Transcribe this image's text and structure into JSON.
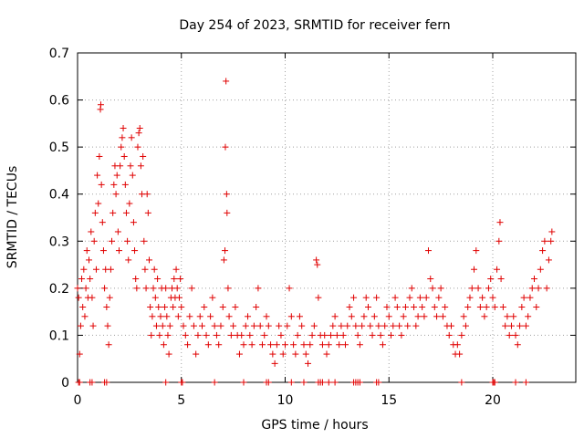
{
  "chart_data": {
    "type": "scatter",
    "title": "Day 254 of 2023, SRMTID for receiver fern",
    "xlabel": "GPS time / hours",
    "ylabel": "SRMTID / TECUs",
    "xlim": [
      0,
      24
    ],
    "ylim": [
      0,
      0.7
    ],
    "xticks": [
      0,
      5,
      10,
      15,
      20
    ],
    "yticks": [
      0,
      0.1,
      0.2,
      0.3,
      0.4,
      0.5,
      0.6,
      0.7
    ],
    "xtick_labels": [
      "0",
      "5",
      "10",
      "15",
      "20"
    ],
    "ytick_labels": [
      "0",
      "0.1",
      "0.2",
      "0.3",
      "0.4",
      "0.5",
      "0.6",
      "0.7"
    ],
    "grid": true,
    "marker": "+",
    "color": "#e00000",
    "series": [
      {
        "name": "SRMTID",
        "points": [
          [
            0.0,
            0.2
          ],
          [
            0.05,
            0.18
          ],
          [
            0.1,
            0.06
          ],
          [
            0.15,
            0.12
          ],
          [
            0.2,
            0.22
          ],
          [
            0.25,
            0.16
          ],
          [
            0.3,
            0.24
          ],
          [
            0.35,
            0.14
          ],
          [
            0.4,
            0.2
          ],
          [
            0.45,
            0.28
          ],
          [
            0.5,
            0.18
          ],
          [
            0.55,
            0.26
          ],
          [
            0.6,
            0.22
          ],
          [
            0.65,
            0.32
          ],
          [
            0.7,
            0.18
          ],
          [
            0.75,
            0.12
          ],
          [
            0.8,
            0.3
          ],
          [
            0.85,
            0.36
          ],
          [
            0.9,
            0.24
          ],
          [
            0.95,
            0.44
          ],
          [
            1.0,
            0.38
          ],
          [
            1.05,
            0.48
          ],
          [
            1.1,
            0.58
          ],
          [
            1.12,
            0.59
          ],
          [
            1.15,
            0.42
          ],
          [
            1.2,
            0.34
          ],
          [
            1.25,
            0.28
          ],
          [
            1.3,
            0.2
          ],
          [
            1.35,
            0.24
          ],
          [
            1.4,
            0.16
          ],
          [
            1.45,
            0.12
          ],
          [
            1.5,
            0.08
          ],
          [
            1.55,
            0.18
          ],
          [
            1.6,
            0.24
          ],
          [
            1.65,
            0.3
          ],
          [
            1.7,
            0.36
          ],
          [
            1.75,
            0.42
          ],
          [
            1.8,
            0.46
          ],
          [
            1.85,
            0.4
          ],
          [
            1.9,
            0.44
          ],
          [
            1.95,
            0.32
          ],
          [
            2.0,
            0.28
          ],
          [
            2.05,
            0.46
          ],
          [
            2.1,
            0.5
          ],
          [
            2.15,
            0.52
          ],
          [
            2.2,
            0.54
          ],
          [
            2.25,
            0.48
          ],
          [
            2.3,
            0.42
          ],
          [
            2.35,
            0.36
          ],
          [
            2.4,
            0.3
          ],
          [
            2.45,
            0.26
          ],
          [
            2.5,
            0.38
          ],
          [
            2.55,
            0.46
          ],
          [
            2.6,
            0.52
          ],
          [
            2.65,
            0.44
          ],
          [
            2.7,
            0.34
          ],
          [
            2.75,
            0.28
          ],
          [
            2.8,
            0.22
          ],
          [
            2.85,
            0.2
          ],
          [
            2.9,
            0.5
          ],
          [
            2.95,
            0.53
          ],
          [
            3.0,
            0.54
          ],
          [
            3.05,
            0.46
          ],
          [
            3.1,
            0.4
          ],
          [
            3.15,
            0.48
          ],
          [
            3.2,
            0.3
          ],
          [
            3.25,
            0.24
          ],
          [
            3.3,
            0.2
          ],
          [
            3.35,
            0.4
          ],
          [
            3.4,
            0.36
          ],
          [
            3.45,
            0.26
          ],
          [
            3.5,
            0.16
          ],
          [
            3.55,
            0.1
          ],
          [
            3.6,
            0.14
          ],
          [
            3.65,
            0.2
          ],
          [
            3.7,
            0.24
          ],
          [
            3.75,
            0.18
          ],
          [
            3.8,
            0.12
          ],
          [
            3.85,
            0.22
          ],
          [
            3.9,
            0.16
          ],
          [
            3.95,
            0.1
          ],
          [
            4.0,
            0.14
          ],
          [
            4.05,
            0.2
          ],
          [
            4.1,
            0.12
          ],
          [
            4.15,
            0.08
          ],
          [
            4.2,
            0.16
          ],
          [
            4.25,
            0.2
          ],
          [
            4.3,
            0.14
          ],
          [
            4.35,
            0.1
          ],
          [
            4.4,
            0.06
          ],
          [
            4.45,
            0.12
          ],
          [
            4.5,
            0.18
          ],
          [
            4.55,
            0.2
          ],
          [
            4.6,
            0.16
          ],
          [
            4.65,
            0.22
          ],
          [
            4.7,
            0.18
          ],
          [
            4.75,
            0.24
          ],
          [
            4.8,
            0.2
          ],
          [
            4.85,
            0.14
          ],
          [
            4.9,
            0.18
          ],
          [
            4.95,
            0.22
          ],
          [
            5.0,
            0.16
          ],
          [
            5.1,
            0.12
          ],
          [
            5.2,
            0.1
          ],
          [
            5.3,
            0.08
          ],
          [
            5.4,
            0.14
          ],
          [
            5.5,
            0.2
          ],
          [
            5.6,
            0.12
          ],
          [
            5.7,
            0.06
          ],
          [
            5.8,
            0.1
          ],
          [
            5.9,
            0.14
          ],
          [
            6.0,
            0.12
          ],
          [
            6.1,
            0.16
          ],
          [
            6.2,
            0.1
          ],
          [
            6.3,
            0.08
          ],
          [
            6.4,
            0.14
          ],
          [
            6.5,
            0.18
          ],
          [
            6.6,
            0.12
          ],
          [
            6.7,
            0.1
          ],
          [
            6.8,
            0.08
          ],
          [
            6.9,
            0.12
          ],
          [
            7.0,
            0.16
          ],
          [
            7.05,
            0.26
          ],
          [
            7.1,
            0.28
          ],
          [
            7.12,
            0.5
          ],
          [
            7.15,
            0.64
          ],
          [
            7.18,
            0.4
          ],
          [
            7.2,
            0.36
          ],
          [
            7.25,
            0.2
          ],
          [
            7.3,
            0.14
          ],
          [
            7.4,
            0.1
          ],
          [
            7.5,
            0.12
          ],
          [
            7.6,
            0.16
          ],
          [
            7.7,
            0.1
          ],
          [
            7.8,
            0.06
          ],
          [
            7.9,
            0.1
          ],
          [
            8.0,
            0.08
          ],
          [
            8.1,
            0.12
          ],
          [
            8.2,
            0.14
          ],
          [
            8.3,
            0.1
          ],
          [
            8.4,
            0.08
          ],
          [
            8.5,
            0.12
          ],
          [
            8.6,
            0.16
          ],
          [
            8.7,
            0.2
          ],
          [
            8.8,
            0.12
          ],
          [
            8.9,
            0.08
          ],
          [
            9.0,
            0.1
          ],
          [
            9.1,
            0.14
          ],
          [
            9.2,
            0.12
          ],
          [
            9.3,
            0.08
          ],
          [
            9.4,
            0.06
          ],
          [
            9.5,
            0.04
          ],
          [
            9.6,
            0.08
          ],
          [
            9.7,
            0.12
          ],
          [
            9.8,
            0.1
          ],
          [
            9.9,
            0.06
          ],
          [
            10.0,
            0.08
          ],
          [
            10.1,
            0.12
          ],
          [
            10.2,
            0.2
          ],
          [
            10.3,
            0.14
          ],
          [
            10.4,
            0.08
          ],
          [
            10.5,
            0.06
          ],
          [
            10.6,
            0.1
          ],
          [
            10.7,
            0.14
          ],
          [
            10.8,
            0.12
          ],
          [
            10.9,
            0.08
          ],
          [
            11.0,
            0.06
          ],
          [
            11.1,
            0.04
          ],
          [
            11.2,
            0.08
          ],
          [
            11.3,
            0.1
          ],
          [
            11.4,
            0.12
          ],
          [
            11.5,
            0.26
          ],
          [
            11.55,
            0.25
          ],
          [
            11.6,
            0.18
          ],
          [
            11.7,
            0.1
          ],
          [
            11.8,
            0.08
          ],
          [
            11.9,
            0.1
          ],
          [
            12.0,
            0.06
          ],
          [
            12.1,
            0.08
          ],
          [
            12.2,
            0.1
          ],
          [
            12.3,
            0.12
          ],
          [
            12.4,
            0.14
          ],
          [
            12.5,
            0.1
          ],
          [
            12.6,
            0.08
          ],
          [
            12.7,
            0.12
          ],
          [
            12.8,
            0.1
          ],
          [
            12.9,
            0.08
          ],
          [
            13.0,
            0.12
          ],
          [
            13.1,
            0.16
          ],
          [
            13.2,
            0.14
          ],
          [
            13.3,
            0.18
          ],
          [
            13.4,
            0.12
          ],
          [
            13.5,
            0.1
          ],
          [
            13.6,
            0.08
          ],
          [
            13.7,
            0.12
          ],
          [
            13.8,
            0.14
          ],
          [
            13.9,
            0.18
          ],
          [
            14.0,
            0.16
          ],
          [
            14.1,
            0.12
          ],
          [
            14.2,
            0.1
          ],
          [
            14.3,
            0.14
          ],
          [
            14.4,
            0.18
          ],
          [
            14.5,
            0.12
          ],
          [
            14.6,
            0.1
          ],
          [
            14.7,
            0.08
          ],
          [
            14.8,
            0.12
          ],
          [
            14.9,
            0.16
          ],
          [
            15.0,
            0.14
          ],
          [
            15.1,
            0.1
          ],
          [
            15.2,
            0.12
          ],
          [
            15.3,
            0.18
          ],
          [
            15.4,
            0.16
          ],
          [
            15.5,
            0.12
          ],
          [
            15.6,
            0.1
          ],
          [
            15.7,
            0.14
          ],
          [
            15.8,
            0.16
          ],
          [
            15.9,
            0.12
          ],
          [
            16.0,
            0.18
          ],
          [
            16.1,
            0.2
          ],
          [
            16.2,
            0.16
          ],
          [
            16.3,
            0.12
          ],
          [
            16.4,
            0.14
          ],
          [
            16.5,
            0.18
          ],
          [
            16.6,
            0.16
          ],
          [
            16.7,
            0.14
          ],
          [
            16.8,
            0.18
          ],
          [
            16.9,
            0.28
          ],
          [
            17.0,
            0.22
          ],
          [
            17.1,
            0.2
          ],
          [
            17.2,
            0.16
          ],
          [
            17.3,
            0.14
          ],
          [
            17.4,
            0.18
          ],
          [
            17.5,
            0.2
          ],
          [
            17.6,
            0.14
          ],
          [
            17.7,
            0.16
          ],
          [
            17.8,
            0.12
          ],
          [
            17.9,
            0.1
          ],
          [
            18.0,
            0.12
          ],
          [
            18.1,
            0.08
          ],
          [
            18.2,
            0.06
          ],
          [
            18.3,
            0.08
          ],
          [
            18.4,
            0.06
          ],
          [
            18.5,
            0.1
          ],
          [
            18.6,
            0.14
          ],
          [
            18.7,
            0.12
          ],
          [
            18.8,
            0.16
          ],
          [
            18.9,
            0.18
          ],
          [
            19.0,
            0.2
          ],
          [
            19.1,
            0.24
          ],
          [
            19.2,
            0.28
          ],
          [
            19.3,
            0.2
          ],
          [
            19.4,
            0.16
          ],
          [
            19.5,
            0.18
          ],
          [
            19.6,
            0.14
          ],
          [
            19.7,
            0.16
          ],
          [
            19.8,
            0.2
          ],
          [
            19.9,
            0.22
          ],
          [
            20.0,
            0.18
          ],
          [
            20.1,
            0.16
          ],
          [
            20.2,
            0.24
          ],
          [
            20.3,
            0.3
          ],
          [
            20.35,
            0.34
          ],
          [
            20.4,
            0.22
          ],
          [
            20.5,
            0.16
          ],
          [
            20.6,
            0.12
          ],
          [
            20.7,
            0.14
          ],
          [
            20.8,
            0.1
          ],
          [
            20.9,
            0.12
          ],
          [
            21.0,
            0.14
          ],
          [
            21.1,
            0.1
          ],
          [
            21.2,
            0.08
          ],
          [
            21.3,
            0.12
          ],
          [
            21.4,
            0.16
          ],
          [
            21.5,
            0.18
          ],
          [
            21.6,
            0.12
          ],
          [
            21.7,
            0.14
          ],
          [
            21.8,
            0.18
          ],
          [
            21.9,
            0.2
          ],
          [
            22.0,
            0.22
          ],
          [
            22.1,
            0.16
          ],
          [
            22.2,
            0.2
          ],
          [
            22.3,
            0.24
          ],
          [
            22.4,
            0.28
          ],
          [
            22.5,
            0.3
          ],
          [
            22.6,
            0.2
          ],
          [
            22.7,
            0.26
          ],
          [
            22.8,
            0.3
          ],
          [
            22.85,
            0.32
          ]
        ]
      }
    ],
    "zero_points_x": [
      0.05,
      0.1,
      0.6,
      0.7,
      1.3,
      1.4,
      4.25,
      5.0,
      5.05,
      6.6,
      8.0,
      9.1,
      9.2,
      10.3,
      10.9,
      11.6,
      11.7,
      11.8,
      12.1,
      12.4,
      13.3,
      13.4,
      13.5,
      13.6,
      14.4,
      14.5,
      18.5,
      20.0,
      20.05,
      20.1,
      21.1,
      21.6
    ]
  }
}
